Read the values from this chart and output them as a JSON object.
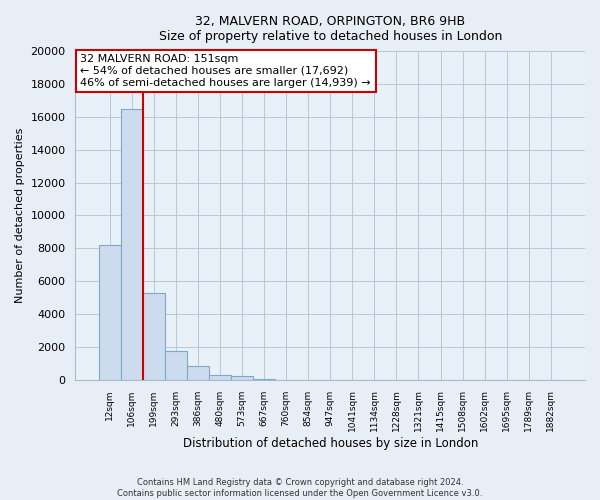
{
  "title": "32, MALVERN ROAD, ORPINGTON, BR6 9HB",
  "subtitle": "Size of property relative to detached houses in London",
  "xlabel": "Distribution of detached houses by size in London",
  "ylabel": "Number of detached properties",
  "bar_labels": [
    "12sqm",
    "106sqm",
    "199sqm",
    "293sqm",
    "386sqm",
    "480sqm",
    "573sqm",
    "667sqm",
    "760sqm",
    "854sqm",
    "947sqm",
    "1041sqm",
    "1134sqm",
    "1228sqm",
    "1321sqm",
    "1415sqm",
    "1508sqm",
    "1602sqm",
    "1695sqm",
    "1789sqm",
    "1882sqm"
  ],
  "bar_heights": [
    8200,
    16500,
    5300,
    1750,
    800,
    280,
    200,
    30,
    0,
    0,
    0,
    0,
    0,
    0,
    0,
    0,
    0,
    0,
    0,
    0,
    0
  ],
  "bar_color": "#ccdcee",
  "bar_edge_color": "#7aaac8",
  "ylim": [
    0,
    20000
  ],
  "yticks": [
    0,
    2000,
    4000,
    6000,
    8000,
    10000,
    12000,
    14000,
    16000,
    18000,
    20000
  ],
  "property_line_x": 1.5,
  "property_line_color": "#cc0000",
  "ann_line1": "32 MALVERN ROAD: 151sqm",
  "ann_line2": "← 54% of detached houses are smaller (17,692)",
  "ann_line3": "46% of semi-detached houses are larger (14,939) →",
  "annotation_box_facecolor": "#ffffff",
  "annotation_box_edge": "#cc0000",
  "footer_line1": "Contains HM Land Registry data © Crown copyright and database right 2024.",
  "footer_line2": "Contains public sector information licensed under the Open Government Licence v3.0.",
  "background_color": "#e8eef5",
  "plot_background_color": "#e8f0f8",
  "grid_color": "#b8c8d8"
}
